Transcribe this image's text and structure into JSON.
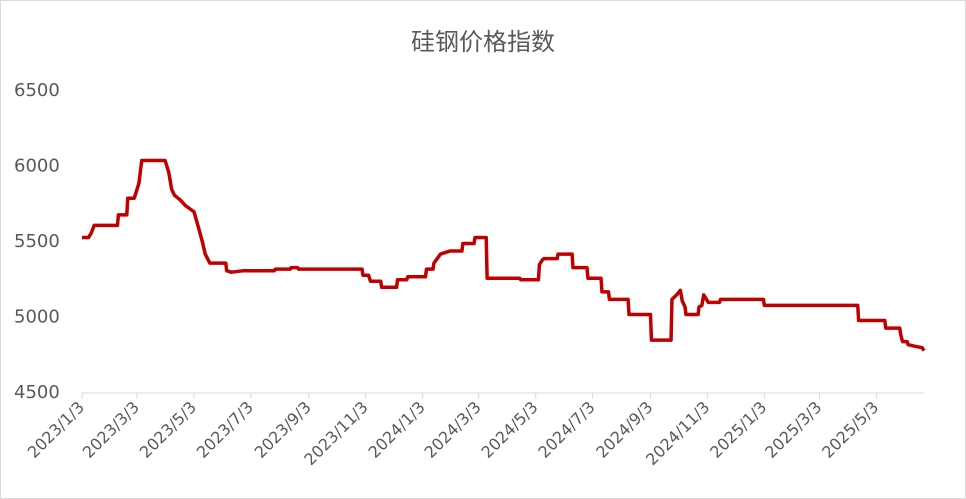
{
  "chart_data": {
    "type": "line",
    "title": "硅钢价格指数",
    "x": [
      "2023/1/3",
      "2023/1/10",
      "2023/1/13",
      "2023/1/16",
      "2023/2/10",
      "2023/2/11",
      "2023/2/20",
      "2023/2/21",
      "2023/2/28",
      "2023/3/5",
      "2023/3/8",
      "2023/4/2",
      "2023/4/6",
      "2023/4/9",
      "2023/4/12",
      "2023/4/18",
      "2023/4/24",
      "2023/5/3",
      "2023/5/8",
      "2023/5/12",
      "2023/5/15",
      "2023/5/20",
      "2023/6/6",
      "2023/6/7",
      "2023/6/12",
      "2023/6/25",
      "2023/7/28",
      "2023/7/29",
      "2023/8/14",
      "2023/8/15",
      "2023/8/22",
      "2023/8/23",
      "2023/10/30",
      "2023/10/31",
      "2023/11/6",
      "2023/11/8",
      "2023/11/19",
      "2023/11/20",
      "2023/12/6",
      "2023/12/7",
      "2023/12/17",
      "2023/12/18",
      "2024/1/6",
      "2024/1/7",
      "2024/1/14",
      "2024/1/15",
      "2024/1/22",
      "2024/2/1",
      "2024/2/14",
      "2024/2/15",
      "2024/2/27",
      "2024/2/28",
      "2024/3/11",
      "2024/3/12",
      "2024/4/16",
      "2024/4/17",
      "2024/5/6",
      "2024/5/7",
      "2024/5/10",
      "2024/5/12",
      "2024/5/26",
      "2024/5/27",
      "2024/6/11",
      "2024/6/12",
      "2024/6/27",
      "2024/6/28",
      "2024/7/12",
      "2024/7/13",
      "2024/7/20",
      "2024/7/21",
      "2024/8/10",
      "2024/8/11",
      "2024/9/3",
      "2024/9/4",
      "2024/9/25",
      "2024/9/26",
      "2024/10/1",
      "2024/10/5",
      "2024/10/7",
      "2024/10/10",
      "2024/10/11",
      "2024/10/24",
      "2024/10/25",
      "2024/10/28",
      "2024/10/30",
      "2024/11/4",
      "2024/11/16",
      "2024/11/17",
      "2025/1/2",
      "2025/1/3",
      "2025/4/13",
      "2025/4/14",
      "2025/5/12",
      "2025/5/13",
      "2025/5/28",
      "2025/5/29",
      "2025/5/31",
      "2025/6/5",
      "2025/6/6",
      "2025/6/13",
      "2025/6/21",
      "2025/6/23"
    ],
    "series": [
      {
        "name": "硅钢价格指数",
        "color": "#c00000",
        "values": [
          5530,
          5530,
          5560,
          5610,
          5610,
          5680,
          5680,
          5790,
          5790,
          5890,
          6040,
          6040,
          5960,
          5850,
          5810,
          5780,
          5740,
          5700,
          5590,
          5500,
          5420,
          5360,
          5360,
          5310,
          5300,
          5310,
          5310,
          5320,
          5320,
          5330,
          5330,
          5320,
          5320,
          5280,
          5280,
          5240,
          5240,
          5200,
          5200,
          5250,
          5250,
          5270,
          5270,
          5320,
          5320,
          5360,
          5420,
          5440,
          5440,
          5490,
          5490,
          5530,
          5530,
          5260,
          5260,
          5250,
          5250,
          5350,
          5380,
          5390,
          5390,
          5420,
          5420,
          5330,
          5330,
          5260,
          5260,
          5170,
          5170,
          5120,
          5120,
          5020,
          5020,
          4850,
          4850,
          5120,
          5150,
          5180,
          5110,
          5070,
          5020,
          5020,
          5070,
          5080,
          5150,
          5100,
          5100,
          5120,
          5120,
          5080,
          5080,
          4980,
          4980,
          4930,
          4930,
          4890,
          4840,
          4840,
          4820,
          4810,
          4800,
          4780
        ]
      }
    ],
    "xlim": [
      "2023/1/3",
      "2025/6/23"
    ],
    "xticks": [
      "2023/1/3",
      "2023/3/3",
      "2023/5/3",
      "2023/7/3",
      "2023/9/3",
      "2023/11/3",
      "2024/1/3",
      "2024/3/3",
      "2024/5/3",
      "2024/7/3",
      "2024/9/3",
      "2024/11/3",
      "2025/1/3",
      "2025/3/3",
      "2025/5/3"
    ],
    "ylim": [
      4500,
      6500
    ],
    "yticks": [
      4500,
      5000,
      5500,
      6000,
      6500
    ],
    "grid": false
  }
}
